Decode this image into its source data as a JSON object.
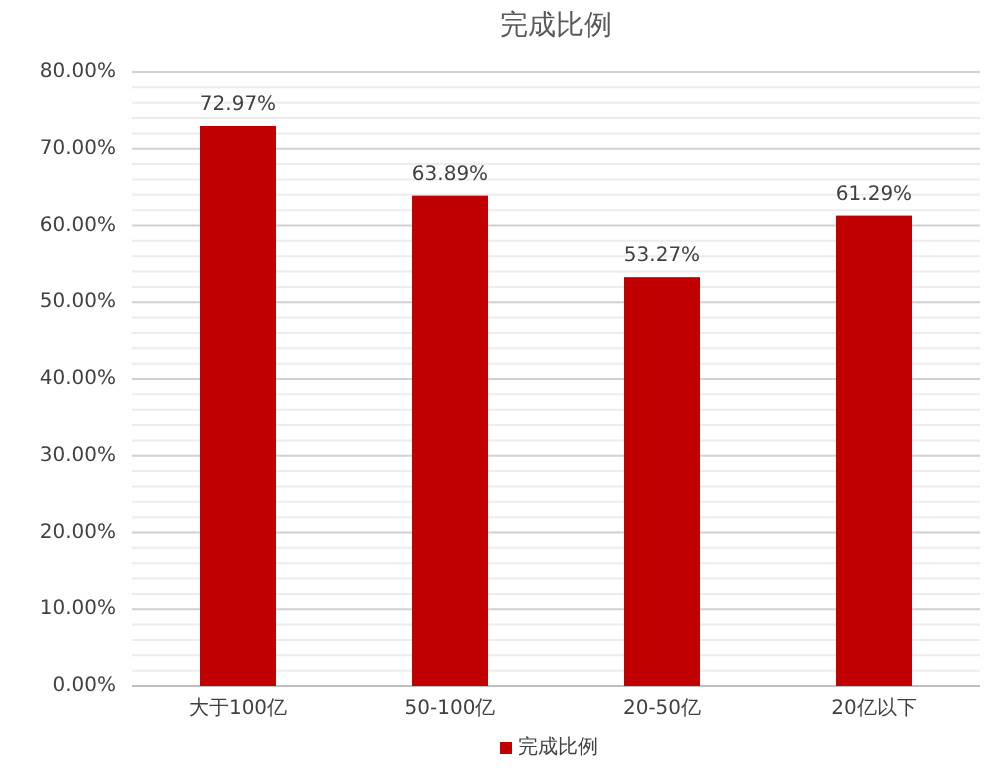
{
  "chart_data": {
    "type": "bar",
    "title": "完成比例",
    "categories": [
      "大于100亿",
      "50-100亿",
      "20-50亿",
      "20亿以下"
    ],
    "series": [
      {
        "name": "完成比例",
        "color": "#c00000",
        "values": [
          72.97,
          63.89,
          53.27,
          61.29
        ],
        "value_labels": [
          "72.97%",
          "63.89%",
          "53.27%",
          "61.29%"
        ]
      }
    ],
    "ylim": [
      0,
      80
    ],
    "yticks": [
      {
        "value": 0,
        "label": "0.00%"
      },
      {
        "value": 2,
        "label": null
      },
      {
        "value": 4,
        "label": null
      },
      {
        "value": 6,
        "label": null
      },
      {
        "value": 8,
        "label": null
      },
      {
        "value": 10,
        "label": "10.00%"
      },
      {
        "value": 12,
        "label": null
      },
      {
        "value": 14,
        "label": null
      },
      {
        "value": 16,
        "label": null
      },
      {
        "value": 18,
        "label": null
      },
      {
        "value": 20,
        "label": "20.00%"
      },
      {
        "value": 22,
        "label": null
      },
      {
        "value": 24,
        "label": null
      },
      {
        "value": 26,
        "label": null
      },
      {
        "value": 28,
        "label": null
      },
      {
        "value": 30,
        "label": "30.00%"
      },
      {
        "value": 32,
        "label": null
      },
      {
        "value": 34,
        "label": null
      },
      {
        "value": 36,
        "label": null
      },
      {
        "value": 38,
        "label": null
      },
      {
        "value": 40,
        "label": "40.00%"
      },
      {
        "value": 42,
        "label": null
      },
      {
        "value": 44,
        "label": null
      },
      {
        "value": 46,
        "label": null
      },
      {
        "value": 48,
        "label": null
      },
      {
        "value": 50,
        "label": "50.00%"
      },
      {
        "value": 52,
        "label": null
      },
      {
        "value": 54,
        "label": null
      },
      {
        "value": 56,
        "label": null
      },
      {
        "value": 58,
        "label": null
      },
      {
        "value": 60,
        "label": "60.00%"
      },
      {
        "value": 62,
        "label": null
      },
      {
        "value": 64,
        "label": null
      },
      {
        "value": 66,
        "label": null
      },
      {
        "value": 68,
        "label": null
      },
      {
        "value": 70,
        "label": "70.00%"
      },
      {
        "value": 72,
        "label": null
      },
      {
        "value": 74,
        "label": null
      },
      {
        "value": 76,
        "label": null
      },
      {
        "value": 78,
        "label": null
      },
      {
        "value": 80,
        "label": "80.00%"
      }
    ],
    "grid": "y",
    "legend": "bottom"
  }
}
